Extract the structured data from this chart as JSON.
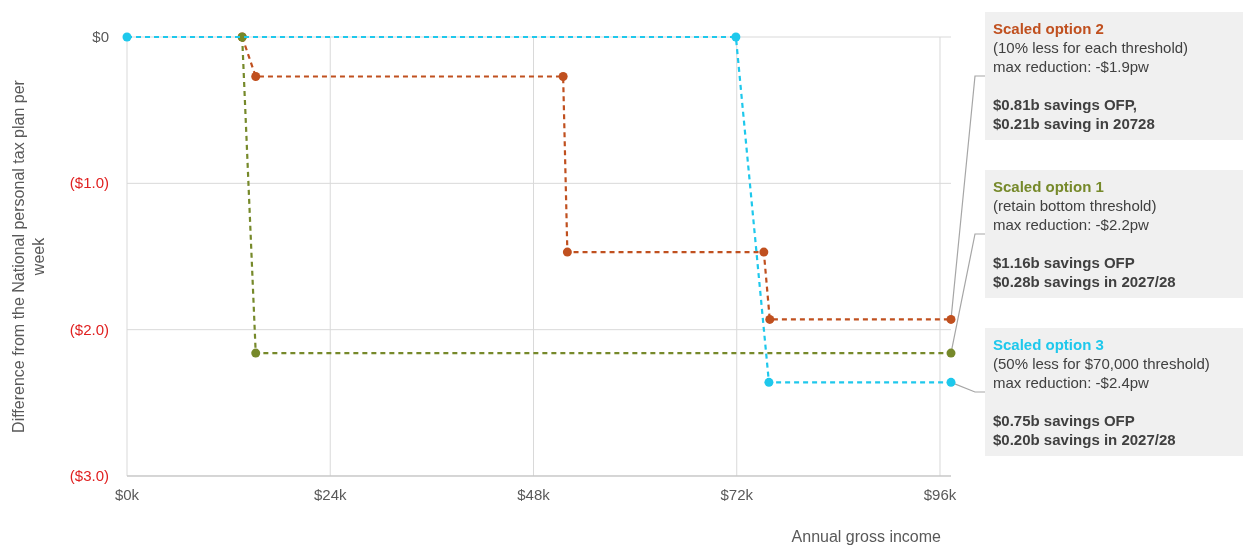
{
  "chart_data": {
    "type": "line",
    "xlabel": "Annual gross income",
    "ylabel": "Difference from the National personal tax plan per week",
    "xlim": [
      0,
      97.3
    ],
    "xticks": [
      {
        "value": 0,
        "label": "$0k"
      },
      {
        "value": 24,
        "label": "$24k"
      },
      {
        "value": 48,
        "label": "$48k"
      },
      {
        "value": 72,
        "label": "$72k"
      },
      {
        "value": 96,
        "label": "$96k"
      }
    ],
    "ylim": [
      -3,
      0
    ],
    "yticks": [
      {
        "value": 0,
        "label": "$0"
      },
      {
        "value": -1,
        "label": "($1.0)"
      },
      {
        "value": -2,
        "label": "($2.0)"
      },
      {
        "value": -3,
        "label": "($3.0)"
      }
    ],
    "grid": true,
    "legend": false,
    "marker": "circle",
    "line_style": "dashed",
    "series": [
      {
        "name": "Scaled option 2",
        "color": "#c0501f",
        "x": [
          13.6,
          15.2,
          51.5,
          52,
          75.2,
          75.9,
          97.3
        ],
        "values": [
          0,
          -0.27,
          -0.27,
          -1.47,
          -1.47,
          -1.93,
          -1.93
        ]
      },
      {
        "name": "Scaled option 1",
        "color": "#76892a",
        "x": [
          13.6,
          15.2,
          97.3
        ],
        "values": [
          0,
          -2.16,
          -2.16
        ]
      },
      {
        "name": "Scaled option 3",
        "color": "#1ec8ec",
        "x": [
          0,
          71.9,
          75.8,
          97.3
        ],
        "values": [
          0,
          0,
          -2.36,
          -2.36
        ]
      }
    ],
    "annotations": [
      "(10% less for each threshold)",
      "max reduction: -$1.9pw",
      "$0.81b savings OFP,",
      "$0.21b saving in 20728",
      "(retain bottom threshold)",
      "max reduction: -$2.2pw",
      "$1.16b savings OFP",
      "$0.28b savings in 2027/28",
      "(50% less for $70,000 threshold)",
      "max reduction: -$2.4pw",
      "$0.75b savings OFP",
      "$0.20b savings in 2027/28"
    ]
  }
}
